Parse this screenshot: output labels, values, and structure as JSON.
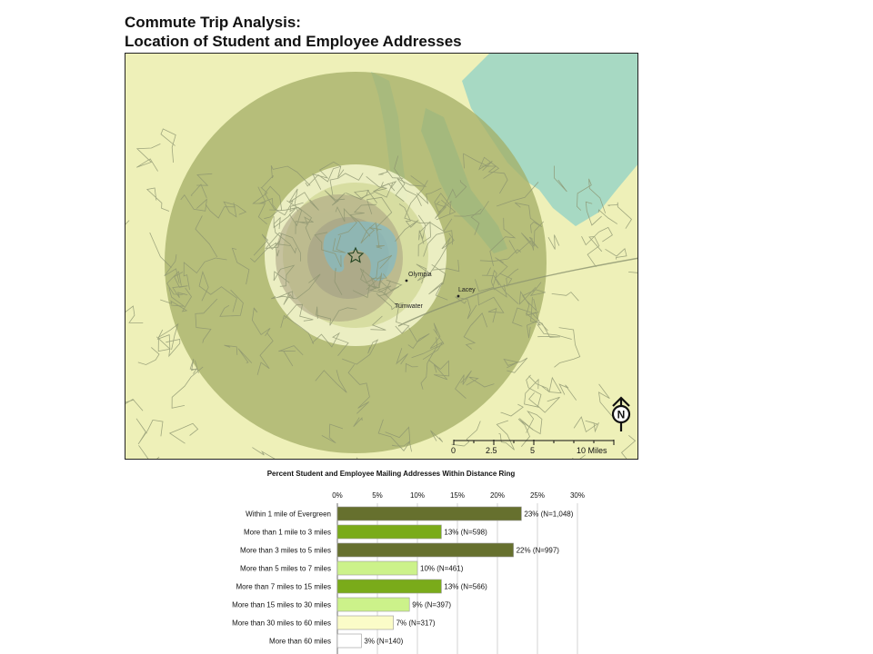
{
  "title": {
    "line1": "Commute Trip Analysis:",
    "line2": "Location of Student and Employee Addresses"
  },
  "map": {
    "places": [
      "Olympia",
      "Lacey",
      "Tumwater"
    ],
    "north_label": "N",
    "scale": {
      "labels": [
        "0",
        "2.5",
        "5",
        "10 Miles"
      ]
    },
    "colors": {
      "land": "#eef0b8",
      "water": "#9ed6c4",
      "ring_dark": "#a3ad66",
      "ring_light": "#f5f7cf",
      "ring_mid": "#c9d28a",
      "ring_brown": "#a89f82",
      "roads": "#8c9470"
    }
  },
  "chart_data": {
    "type": "bar",
    "orientation": "horizontal",
    "title": "Percent Student and Employee Mailing Addresses Within Distance Ring",
    "xlim": [
      0,
      30
    ],
    "xticks": [
      "0%",
      "5%",
      "10%",
      "15%",
      "20%",
      "25%",
      "30%"
    ],
    "categories": [
      "Within 1 mile of Evergreen",
      "More than 1 mile to 3 miles",
      "More than 3 miles to 5 miles",
      "More than 5 miles to 7 miles",
      "More than 7 miles to 15 miles",
      "More than 15 miles to 30 miles",
      "More than 30 miles to 60 miles",
      "More than 60 miles"
    ],
    "values": [
      23,
      13,
      22,
      10,
      13,
      9,
      7,
      3
    ],
    "data_labels": [
      "23% (N=1,048)",
      "13% (N=598)",
      "22% (N=997)",
      "10% (N=461)",
      "13% (N=566)",
      "9% (N=397)",
      "7% (N=317)",
      "3% (N=140)"
    ],
    "bar_colors": [
      "#66702e",
      "#7aab1a",
      "#66702e",
      "#ccf28a",
      "#7aab1a",
      "#ccf28a",
      "#fbfcc8",
      "#ffffff"
    ],
    "grid": true
  }
}
